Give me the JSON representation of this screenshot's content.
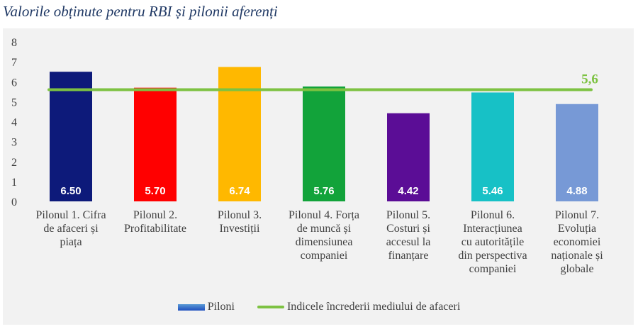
{
  "title": "Valorile obținute pentru RBI și pilonii aferenți",
  "chart_data": {
    "type": "bar",
    "title": "Valorile obținute pentru RBI și pilonii aferenți",
    "categories": [
      [
        "Pilonul 1. Cifra",
        "de afaceri și",
        "piața"
      ],
      [
        "Pilonul 2.",
        "Profitabilitate"
      ],
      [
        "Pilonul 3.",
        "Investiții"
      ],
      [
        "Pilonul 4. Forța",
        "de muncă și",
        "dimensiunea",
        "companiei"
      ],
      [
        "Pilonul 5.",
        "Costuri și",
        "accesul la",
        "finanțare"
      ],
      [
        "Pilonul 6.",
        "Interacțiunea",
        "cu autoritățile",
        "din perspectiva",
        "companiei"
      ],
      [
        "Pilonul 7.",
        "Evoluția",
        "economiei",
        "naționale și",
        "globale"
      ]
    ],
    "values": [
      6.5,
      5.7,
      6.74,
      5.76,
      4.42,
      5.46,
      4.88
    ],
    "value_labels": [
      "6.50",
      "5.70",
      "6.74",
      "5.76",
      "4.42",
      "5.46",
      "4.88"
    ],
    "bar_colors": [
      "#0d1a7a",
      "#ff0000",
      "#ffb800",
      "#12a33a",
      "#5b0d96",
      "#17c1c6",
      "#7799d6"
    ],
    "line": {
      "name": "Indicele încrederii mediului de afaceri",
      "value": 5.6,
      "label": "5,6",
      "color": "#7dc242"
    },
    "ylim": [
      0,
      8
    ],
    "yticks": [
      "0",
      "1",
      "2",
      "3",
      "4",
      "5",
      "6",
      "7",
      "8"
    ],
    "grid": false,
    "legend_position": "bottom",
    "legend": [
      "Piloni",
      "Indicele încrederii mediului de afaceri"
    ]
  }
}
